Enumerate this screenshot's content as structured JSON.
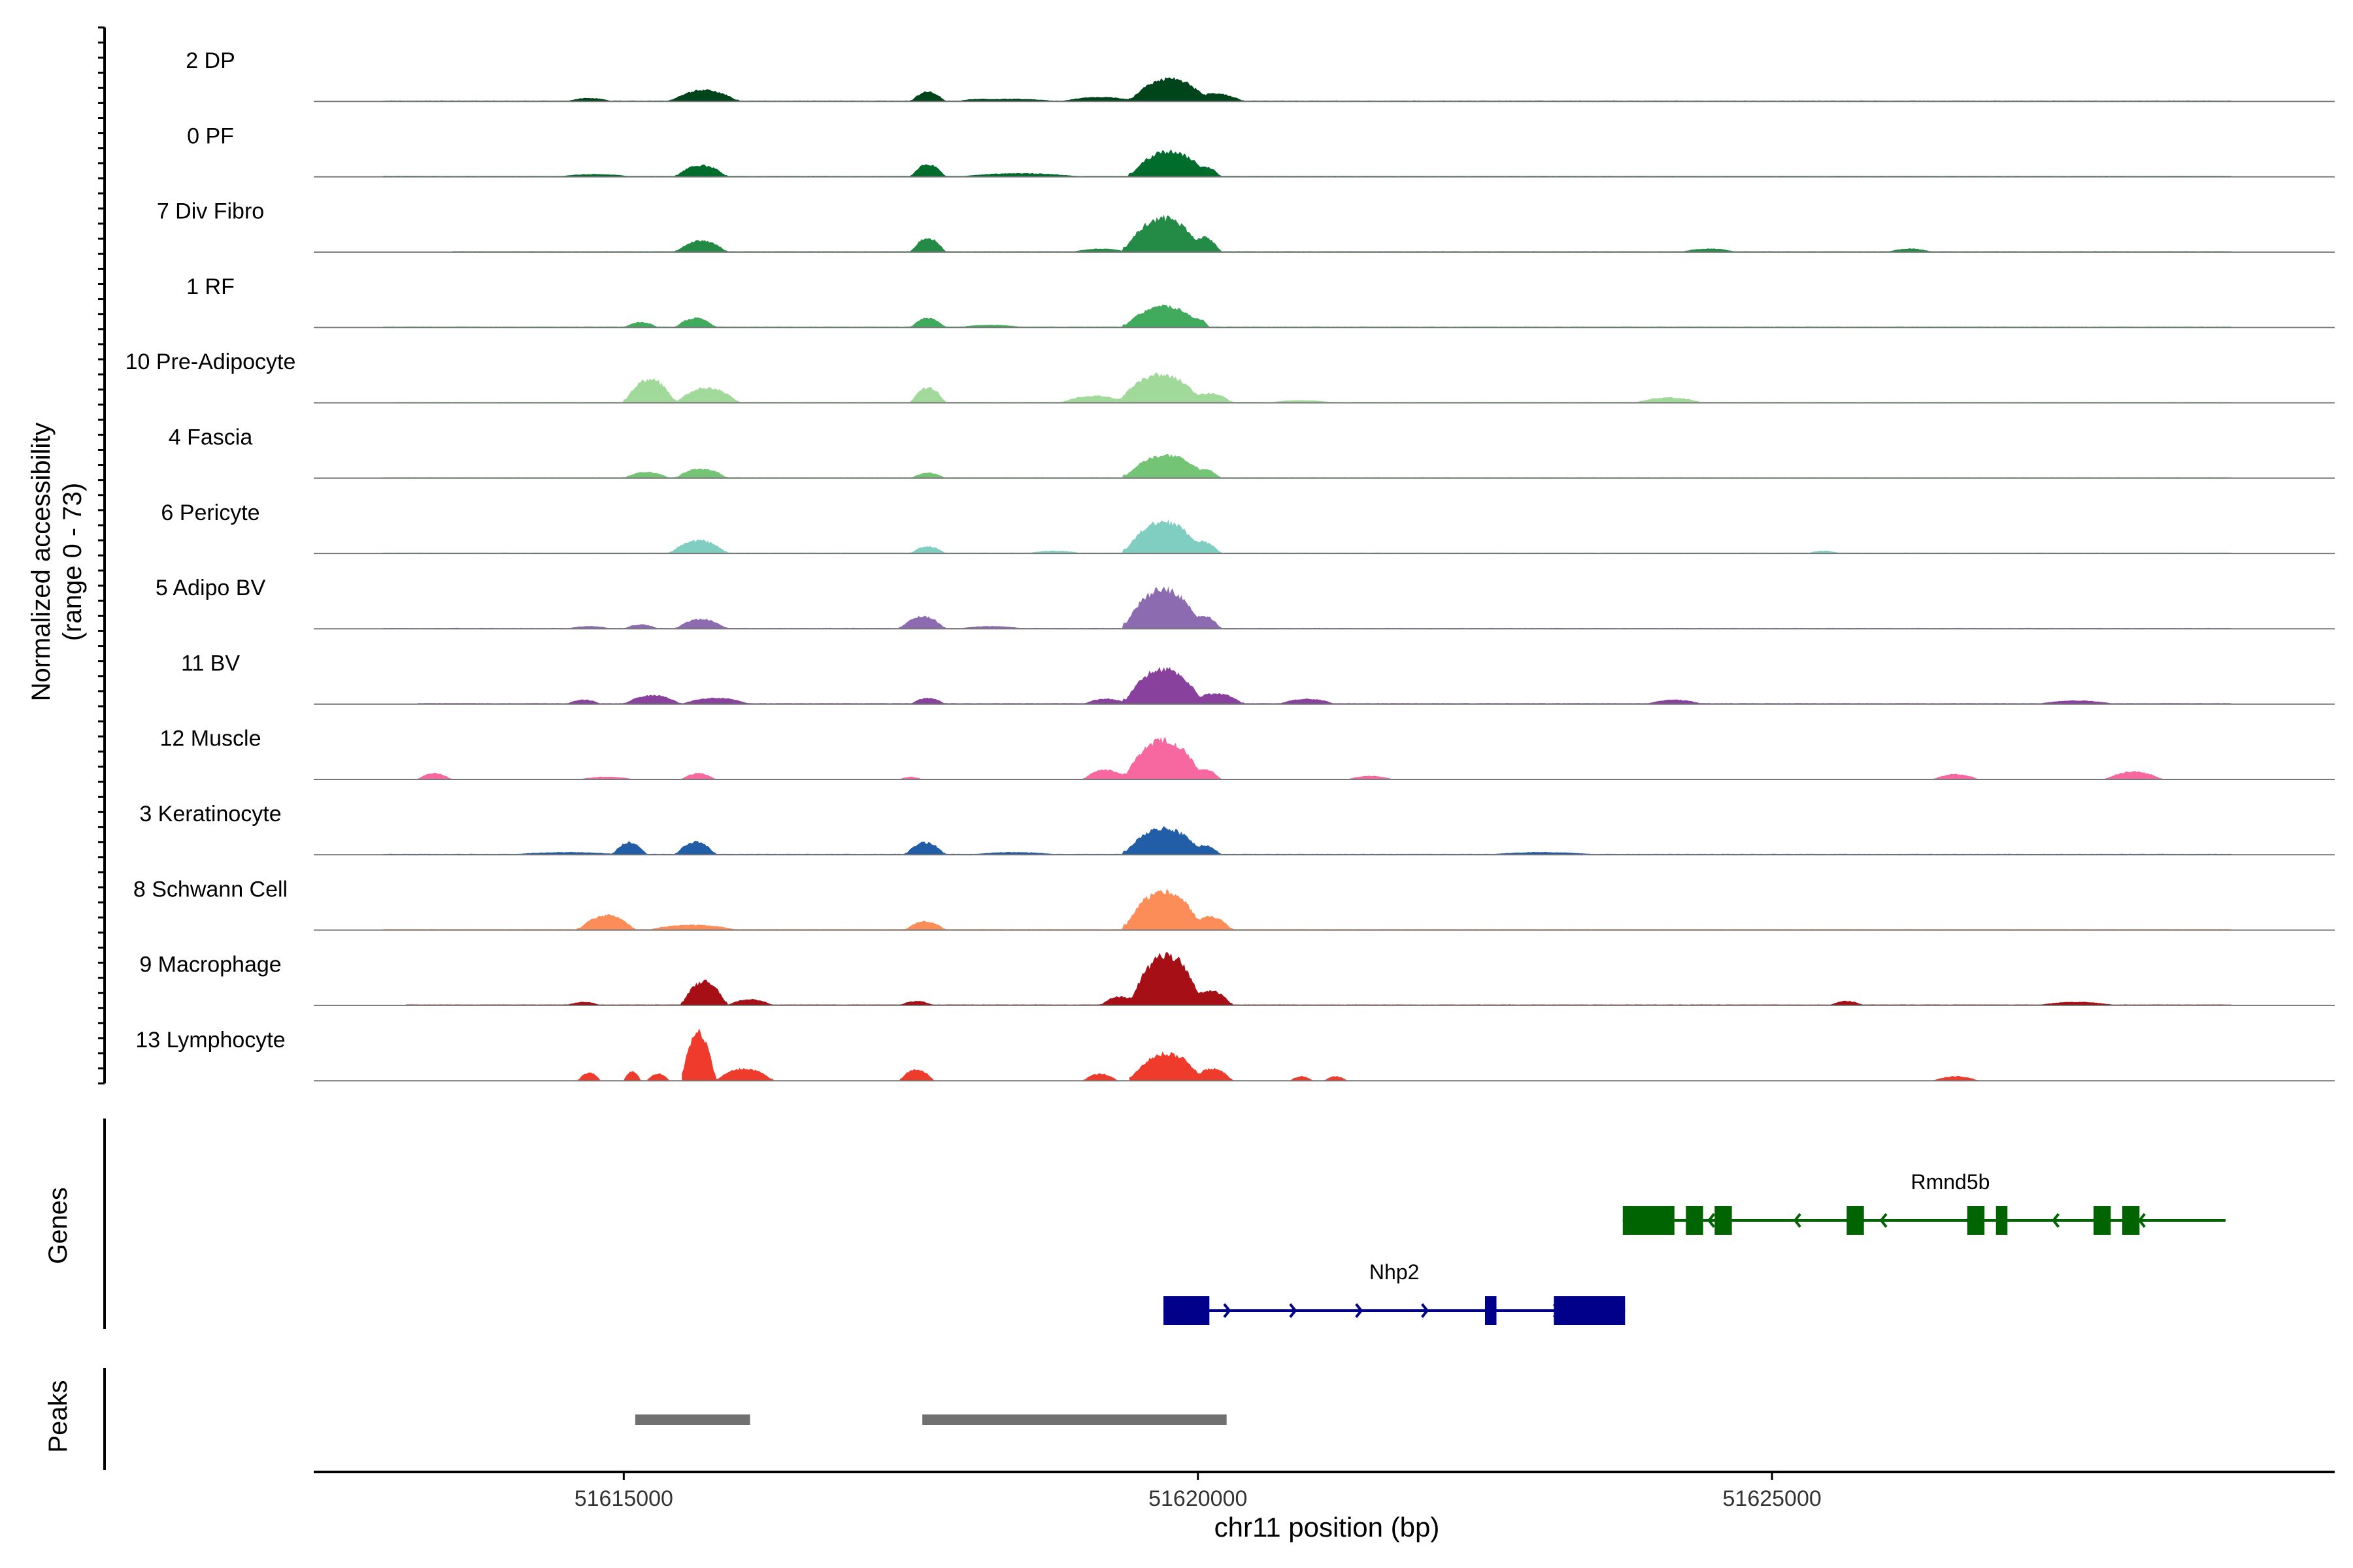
{
  "chart_data": {
    "type": "area",
    "title": "",
    "chromosome": "chr11",
    "xlabel": "chr11 position (bp)",
    "ylabel_line1": "Normalized accessibility",
    "ylabel_line2": "(range 0 - 73)",
    "y_range": [
      0,
      73
    ],
    "xlim": [
      51612300,
      51629900
    ],
    "x_ticks": [
      51615000,
      51620000,
      51625000
    ],
    "x_tick_labels": [
      "51615000",
      "51620000",
      "51625000"
    ],
    "genes_label": "Genes",
    "peaks_label": "Peaks",
    "tracks": [
      {
        "name": "2 DP",
        "color": "#00441b",
        "regions": [
          {
            "start": 51612900,
            "end": 51629000,
            "h": 1
          },
          {
            "start": 51614500,
            "end": 51614900,
            "h": 4
          },
          {
            "start": 51615400,
            "end": 51616000,
            "h": 13
          },
          {
            "start": 51617900,
            "end": 51618300,
            "h": 3
          },
          {
            "start": 51617500,
            "end": 51617800,
            "h": 11
          },
          {
            "start": 51617950,
            "end": 51618800,
            "h": 3
          },
          {
            "start": 51618800,
            "end": 51619500,
            "h": 5
          },
          {
            "start": 51619400,
            "end": 51620100,
            "h": 26
          },
          {
            "start": 51619900,
            "end": 51620400,
            "h": 9
          }
        ]
      },
      {
        "name": "0 PF",
        "color": "#006d2c",
        "regions": [
          {
            "start": 51612900,
            "end": 51629000,
            "h": 1
          },
          {
            "start": 51614400,
            "end": 51615100,
            "h": 3
          },
          {
            "start": 51615450,
            "end": 51615900,
            "h": 13
          },
          {
            "start": 51617500,
            "end": 51617800,
            "h": 14
          },
          {
            "start": 51617900,
            "end": 51619000,
            "h": 4
          },
          {
            "start": 51619400,
            "end": 51620100,
            "h": 29
          },
          {
            "start": 51619900,
            "end": 51620200,
            "h": 12
          }
        ]
      },
      {
        "name": "7 Div Fibro",
        "color": "#238b45",
        "regions": [
          {
            "start": 51613500,
            "end": 51629000,
            "h": 1
          },
          {
            "start": 51615450,
            "end": 51615900,
            "h": 13
          },
          {
            "start": 51617500,
            "end": 51617800,
            "h": 16
          },
          {
            "start": 51618900,
            "end": 51619400,
            "h": 4
          },
          {
            "start": 51619350,
            "end": 51620050,
            "h": 39
          },
          {
            "start": 51619900,
            "end": 51620200,
            "h": 17
          },
          {
            "start": 51624200,
            "end": 51624700,
            "h": 4
          },
          {
            "start": 51626000,
            "end": 51626400,
            "h": 4
          }
        ]
      },
      {
        "name": "1 RF",
        "color": "#41ab5d",
        "regions": [
          {
            "start": 51612900,
            "end": 51629000,
            "h": 1
          },
          {
            "start": 51615000,
            "end": 51615300,
            "h": 6
          },
          {
            "start": 51615450,
            "end": 51615800,
            "h": 11
          },
          {
            "start": 51617500,
            "end": 51617800,
            "h": 11
          },
          {
            "start": 51617900,
            "end": 51618500,
            "h": 3
          },
          {
            "start": 51619350,
            "end": 51620050,
            "h": 24
          },
          {
            "start": 51619900,
            "end": 51620100,
            "h": 10
          }
        ]
      },
      {
        "name": "10 Pre-Adipocyte",
        "color": "#a1d99b",
        "regions": [
          {
            "start": 51613000,
            "end": 51629000,
            "h": 1
          },
          {
            "start": 51615000,
            "end": 51615450,
            "h": 27
          },
          {
            "start": 51615450,
            "end": 51616000,
            "h": 17
          },
          {
            "start": 51617500,
            "end": 51617800,
            "h": 17
          },
          {
            "start": 51618800,
            "end": 51619400,
            "h": 8
          },
          {
            "start": 51619300,
            "end": 51620050,
            "h": 32
          },
          {
            "start": 51619900,
            "end": 51620300,
            "h": 11
          },
          {
            "start": 51620600,
            "end": 51621200,
            "h": 3
          },
          {
            "start": 51623800,
            "end": 51624400,
            "h": 6
          }
        ]
      },
      {
        "name": "4 Fascia",
        "color": "#74c476",
        "regions": [
          {
            "start": 51612900,
            "end": 51629000,
            "h": 1
          },
          {
            "start": 51615000,
            "end": 51615400,
            "h": 7
          },
          {
            "start": 51615450,
            "end": 51615900,
            "h": 11
          },
          {
            "start": 51617500,
            "end": 51617800,
            "h": 6
          },
          {
            "start": 51619350,
            "end": 51620100,
            "h": 26
          },
          {
            "start": 51619900,
            "end": 51620200,
            "h": 10
          }
        ]
      },
      {
        "name": "6 Pericyte",
        "color": "#80cdc1",
        "regions": [
          {
            "start": 51612900,
            "end": 51629000,
            "h": 1
          },
          {
            "start": 51615400,
            "end": 51615900,
            "h": 15
          },
          {
            "start": 51617500,
            "end": 51617800,
            "h": 8
          },
          {
            "start": 51618500,
            "end": 51619000,
            "h": 3
          },
          {
            "start": 51619350,
            "end": 51620050,
            "h": 36
          },
          {
            "start": 51619850,
            "end": 51620200,
            "h": 14
          },
          {
            "start": 51625300,
            "end": 51625600,
            "h": 3
          }
        ]
      },
      {
        "name": "5 Adipo BV",
        "color": "#8c6bb1",
        "regions": [
          {
            "start": 51612900,
            "end": 51629000,
            "h": 1
          },
          {
            "start": 51614500,
            "end": 51614900,
            "h": 3
          },
          {
            "start": 51615000,
            "end": 51615300,
            "h": 5
          },
          {
            "start": 51615450,
            "end": 51615900,
            "h": 11
          },
          {
            "start": 51617400,
            "end": 51617800,
            "h": 14
          },
          {
            "start": 51617900,
            "end": 51618500,
            "h": 3
          },
          {
            "start": 51619350,
            "end": 51620050,
            "h": 45
          },
          {
            "start": 51619900,
            "end": 51620200,
            "h": 15
          }
        ]
      },
      {
        "name": "11 BV",
        "color": "#88419d",
        "regions": [
          {
            "start": 51613200,
            "end": 51629000,
            "h": 1
          },
          {
            "start": 51614500,
            "end": 51614800,
            "h": 5
          },
          {
            "start": 51615000,
            "end": 51615500,
            "h": 10
          },
          {
            "start": 51615500,
            "end": 51616100,
            "h": 7
          },
          {
            "start": 51617500,
            "end": 51617800,
            "h": 7
          },
          {
            "start": 51619000,
            "end": 51619400,
            "h": 6
          },
          {
            "start": 51619350,
            "end": 51620050,
            "h": 40
          },
          {
            "start": 51619900,
            "end": 51620400,
            "h": 12
          },
          {
            "start": 51620700,
            "end": 51621200,
            "h": 6
          },
          {
            "start": 51623900,
            "end": 51624400,
            "h": 5
          },
          {
            "start": 51627300,
            "end": 51628000,
            "h": 4
          }
        ]
      },
      {
        "name": "12 Muscle",
        "color": "#f768a1",
        "regions": [
          {
            "start": 51613200,
            "end": 51613500,
            "h": 7
          },
          {
            "start": 51614600,
            "end": 51615100,
            "h": 3
          },
          {
            "start": 51615500,
            "end": 51615800,
            "h": 7
          },
          {
            "start": 51617400,
            "end": 51617600,
            "h": 3
          },
          {
            "start": 51619000,
            "end": 51619400,
            "h": 11
          },
          {
            "start": 51619350,
            "end": 51620050,
            "h": 45
          },
          {
            "start": 51619900,
            "end": 51620200,
            "h": 12
          },
          {
            "start": 51621300,
            "end": 51621700,
            "h": 4
          },
          {
            "start": 51626400,
            "end": 51626800,
            "h": 6
          },
          {
            "start": 51627900,
            "end": 51628400,
            "h": 9
          }
        ]
      },
      {
        "name": "3 Keratinocyte",
        "color": "#225ea8",
        "regions": [
          {
            "start": 51612900,
            "end": 51629000,
            "h": 1
          },
          {
            "start": 51614000,
            "end": 51615000,
            "h": 3
          },
          {
            "start": 51614900,
            "end": 51615200,
            "h": 14
          },
          {
            "start": 51615450,
            "end": 51615800,
            "h": 15
          },
          {
            "start": 51617450,
            "end": 51617800,
            "h": 14
          },
          {
            "start": 51618000,
            "end": 51618800,
            "h": 3
          },
          {
            "start": 51619350,
            "end": 51620050,
            "h": 30
          },
          {
            "start": 51619900,
            "end": 51620200,
            "h": 11
          },
          {
            "start": 51622500,
            "end": 51623500,
            "h": 3
          }
        ]
      },
      {
        "name": "8 Schwann Cell",
        "color": "#fc8d59",
        "regions": [
          {
            "start": 51612900,
            "end": 51629000,
            "h": 1
          },
          {
            "start": 51614600,
            "end": 51615100,
            "h": 17
          },
          {
            "start": 51615200,
            "end": 51616000,
            "h": 6
          },
          {
            "start": 51617450,
            "end": 51617800,
            "h": 10
          },
          {
            "start": 51619350,
            "end": 51620050,
            "h": 44
          },
          {
            "start": 51619900,
            "end": 51620300,
            "h": 15
          }
        ]
      },
      {
        "name": "9 Macrophage",
        "color": "#a50f15",
        "regions": [
          {
            "start": 51613100,
            "end": 51629000,
            "h": 1
          },
          {
            "start": 51614500,
            "end": 51614800,
            "h": 4
          },
          {
            "start": 51615500,
            "end": 51615900,
            "h": 27
          },
          {
            "start": 51615900,
            "end": 51616300,
            "h": 7
          },
          {
            "start": 51617400,
            "end": 51617700,
            "h": 5
          },
          {
            "start": 51619150,
            "end": 51619500,
            "h": 10
          },
          {
            "start": 51619400,
            "end": 51620050,
            "h": 57
          },
          {
            "start": 51619900,
            "end": 51620300,
            "h": 17
          },
          {
            "start": 51625500,
            "end": 51625800,
            "h": 5
          },
          {
            "start": 51627300,
            "end": 51628000,
            "h": 4
          }
        ]
      },
      {
        "name": "13 Lymphocyte",
        "color": "#ef3b2c",
        "regions": [
          {
            "start": 51614600,
            "end": 51614800,
            "h": 9
          },
          {
            "start": 51615000,
            "end": 51615150,
            "h": 11
          },
          {
            "start": 51615200,
            "end": 51615400,
            "h": 8
          },
          {
            "start": 51615500,
            "end": 51615800,
            "h": 56
          },
          {
            "start": 51615800,
            "end": 51616300,
            "h": 14
          },
          {
            "start": 51617400,
            "end": 51617700,
            "h": 13
          },
          {
            "start": 51619000,
            "end": 51619300,
            "h": 8
          },
          {
            "start": 51619400,
            "end": 51620050,
            "h": 31
          },
          {
            "start": 51619950,
            "end": 51620300,
            "h": 14
          },
          {
            "start": 51620800,
            "end": 51621000,
            "h": 5
          },
          {
            "start": 51621100,
            "end": 51621300,
            "h": 5
          },
          {
            "start": 51626400,
            "end": 51626800,
            "h": 5
          }
        ]
      }
    ],
    "genes": [
      {
        "name": "Rmnd5b",
        "strand": "-",
        "start": 51623700,
        "end": 51628950,
        "color": "#006400",
        "exons": [
          [
            51623700,
            51624150
          ],
          [
            51624250,
            51624400
          ],
          [
            51624500,
            51624650
          ],
          [
            51625650,
            51625800
          ],
          [
            51626700,
            51626850
          ],
          [
            51626950,
            51627050
          ],
          [
            51627800,
            51627950
          ],
          [
            51628050,
            51628200
          ]
        ]
      },
      {
        "name": "Nhp2",
        "strand": "+",
        "start": 51619700,
        "end": 51623720,
        "color": "#00008b",
        "exons": [
          [
            51619700,
            51620100
          ],
          [
            51622500,
            51622600
          ],
          [
            51623100,
            51623720
          ]
        ]
      }
    ],
    "peaks": [
      {
        "start": 51615100,
        "end": 51616100
      },
      {
        "start": 51617600,
        "end": 51620250
      }
    ]
  }
}
